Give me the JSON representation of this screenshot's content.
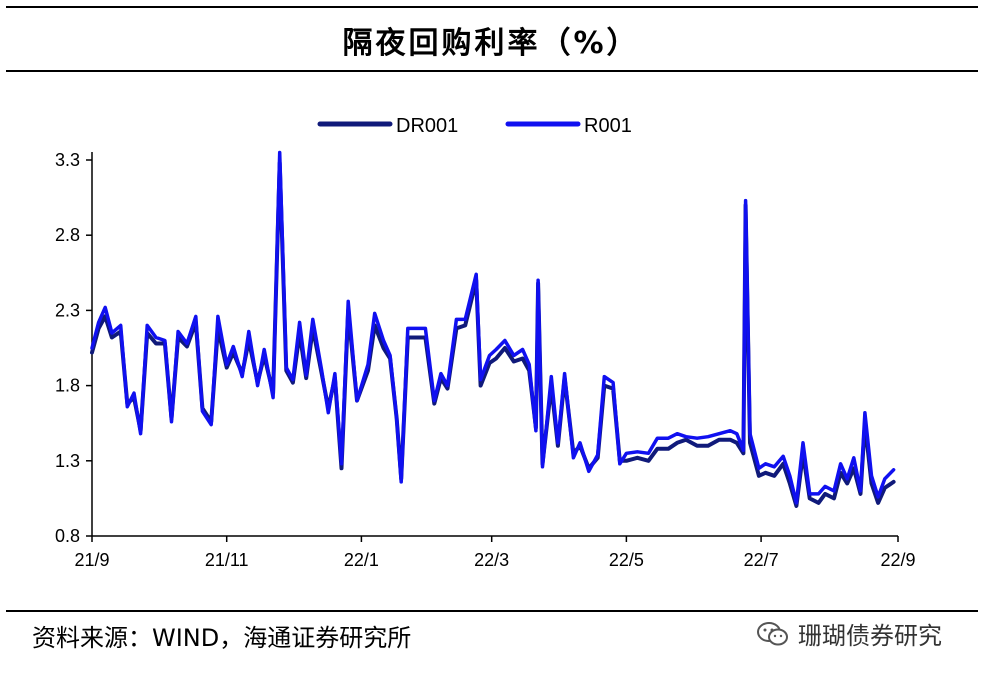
{
  "title": "隔夜回购利率（%）",
  "source": "资料来源：WIND，海通证券研究所",
  "watermark": "珊瑚债券研究",
  "chart_data": {
    "type": "line",
    "title": "隔夜回购利率（%）",
    "xlabel": "",
    "ylabel": "",
    "ylim": [
      0.8,
      3.3
    ],
    "yticks": [
      "0.8",
      "1.3",
      "1.8",
      "2.3",
      "2.8",
      "3.3"
    ],
    "xlim": [
      "2021-09-01",
      "2022-09-01"
    ],
    "xticks": [
      {
        "date": "2021-09-01",
        "label": "21/9"
      },
      {
        "date": "2021-11-01",
        "label": "21/11"
      },
      {
        "date": "2022-01-01",
        "label": "22/1"
      },
      {
        "date": "2022-03-01",
        "label": "22/3"
      },
      {
        "date": "2022-05-01",
        "label": "22/5"
      },
      {
        "date": "2022-07-01",
        "label": "22/7"
      },
      {
        "date": "2022-09-01",
        "label": "22/9"
      }
    ],
    "legend_position": "top-center",
    "grid": false,
    "series": [
      {
        "name": "DR001",
        "color": "#101a7a",
        "points": [
          [
            "2021-09-01",
            2.02
          ],
          [
            "2021-09-04",
            2.18
          ],
          [
            "2021-09-07",
            2.26
          ],
          [
            "2021-09-10",
            2.12
          ],
          [
            "2021-09-14",
            2.16
          ],
          [
            "2021-09-17",
            1.68
          ],
          [
            "2021-09-20",
            1.72
          ],
          [
            "2021-09-23",
            1.5
          ],
          [
            "2021-09-26",
            2.15
          ],
          [
            "2021-09-30",
            2.08
          ],
          [
            "2021-10-04",
            2.08
          ],
          [
            "2021-10-07",
            1.58
          ],
          [
            "2021-10-10",
            2.12
          ],
          [
            "2021-10-14",
            2.06
          ],
          [
            "2021-10-18",
            2.22
          ],
          [
            "2021-10-21",
            1.65
          ],
          [
            "2021-10-25",
            1.56
          ],
          [
            "2021-10-28",
            2.18
          ],
          [
            "2021-11-01",
            1.92
          ],
          [
            "2021-11-04",
            2.02
          ],
          [
            "2021-11-08",
            1.88
          ],
          [
            "2021-11-11",
            2.1
          ],
          [
            "2021-11-15",
            1.82
          ],
          [
            "2021-11-18",
            2.0
          ],
          [
            "2021-11-22",
            1.75
          ],
          [
            "2021-11-25",
            3.28
          ],
          [
            "2021-11-28",
            1.9
          ],
          [
            "2021-12-01",
            1.82
          ],
          [
            "2021-12-04",
            2.15
          ],
          [
            "2021-12-07",
            1.85
          ],
          [
            "2021-12-10",
            2.18
          ],
          [
            "2021-12-14",
            1.88
          ],
          [
            "2021-12-17",
            1.65
          ],
          [
            "2021-12-20",
            1.85
          ],
          [
            "2021-12-23",
            1.25
          ],
          [
            "2021-12-26",
            2.3
          ],
          [
            "2021-12-30",
            1.7
          ],
          [
            "2022-01-04",
            1.9
          ],
          [
            "2022-01-07",
            2.2
          ],
          [
            "2022-01-11",
            2.05
          ],
          [
            "2022-01-14",
            1.98
          ],
          [
            "2022-01-17",
            1.58
          ],
          [
            "2022-01-19",
            1.18
          ],
          [
            "2022-01-22",
            2.12
          ],
          [
            "2022-01-26",
            2.12
          ],
          [
            "2022-01-30",
            2.12
          ],
          [
            "2022-02-03",
            1.68
          ],
          [
            "2022-02-06",
            1.85
          ],
          [
            "2022-02-09",
            1.78
          ],
          [
            "2022-02-13",
            2.18
          ],
          [
            "2022-02-17",
            2.2
          ],
          [
            "2022-02-22",
            2.5
          ],
          [
            "2022-02-24",
            1.8
          ],
          [
            "2022-02-28",
            1.95
          ],
          [
            "2022-03-03",
            1.98
          ],
          [
            "2022-03-07",
            2.05
          ],
          [
            "2022-03-11",
            1.96
          ],
          [
            "2022-03-15",
            1.98
          ],
          [
            "2022-03-18",
            1.9
          ],
          [
            "2022-03-21",
            1.52
          ],
          [
            "2022-03-22",
            2.48
          ],
          [
            "2022-03-24",
            1.28
          ],
          [
            "2022-03-28",
            1.8
          ],
          [
            "2022-03-31",
            1.4
          ],
          [
            "2022-04-03",
            1.85
          ],
          [
            "2022-04-07",
            1.35
          ],
          [
            "2022-04-10",
            1.4
          ],
          [
            "2022-04-14",
            1.25
          ],
          [
            "2022-04-18",
            1.32
          ],
          [
            "2022-04-21",
            1.8
          ],
          [
            "2022-04-25",
            1.78
          ],
          [
            "2022-04-28",
            1.3
          ],
          [
            "2022-05-01",
            1.3
          ],
          [
            "2022-05-06",
            1.32
          ],
          [
            "2022-05-11",
            1.3
          ],
          [
            "2022-05-15",
            1.38
          ],
          [
            "2022-05-20",
            1.38
          ],
          [
            "2022-05-24",
            1.42
          ],
          [
            "2022-05-28",
            1.44
          ],
          [
            "2022-06-02",
            1.4
          ],
          [
            "2022-06-07",
            1.4
          ],
          [
            "2022-06-12",
            1.44
          ],
          [
            "2022-06-17",
            1.44
          ],
          [
            "2022-06-20",
            1.42
          ],
          [
            "2022-06-23",
            1.35
          ],
          [
            "2022-06-24",
            3.0
          ],
          [
            "2022-06-26",
            1.42
          ],
          [
            "2022-06-30",
            1.2
          ],
          [
            "2022-07-03",
            1.22
          ],
          [
            "2022-07-07",
            1.2
          ],
          [
            "2022-07-11",
            1.28
          ],
          [
            "2022-07-14",
            1.15
          ],
          [
            "2022-07-17",
            1.0
          ],
          [
            "2022-07-20",
            1.35
          ],
          [
            "2022-07-23",
            1.05
          ],
          [
            "2022-07-27",
            1.02
          ],
          [
            "2022-07-30",
            1.08
          ],
          [
            "2022-08-03",
            1.05
          ],
          [
            "2022-08-06",
            1.22
          ],
          [
            "2022-08-09",
            1.15
          ],
          [
            "2022-08-12",
            1.25
          ],
          [
            "2022-08-15",
            1.08
          ],
          [
            "2022-08-17",
            1.55
          ],
          [
            "2022-08-20",
            1.15
          ],
          [
            "2022-08-23",
            1.02
          ],
          [
            "2022-08-26",
            1.12
          ],
          [
            "2022-08-30",
            1.16
          ]
        ]
      },
      {
        "name": "R001",
        "color": "#1010f0",
        "points": [
          [
            "2021-09-01",
            2.05
          ],
          [
            "2021-09-04",
            2.22
          ],
          [
            "2021-09-07",
            2.32
          ],
          [
            "2021-09-10",
            2.15
          ],
          [
            "2021-09-14",
            2.2
          ],
          [
            "2021-09-17",
            1.66
          ],
          [
            "2021-09-20",
            1.75
          ],
          [
            "2021-09-23",
            1.48
          ],
          [
            "2021-09-26",
            2.2
          ],
          [
            "2021-09-30",
            2.12
          ],
          [
            "2021-10-04",
            2.1
          ],
          [
            "2021-10-07",
            1.56
          ],
          [
            "2021-10-10",
            2.16
          ],
          [
            "2021-10-14",
            2.08
          ],
          [
            "2021-10-18",
            2.26
          ],
          [
            "2021-10-21",
            1.63
          ],
          [
            "2021-10-25",
            1.54
          ],
          [
            "2021-10-28",
            2.26
          ],
          [
            "2021-11-01",
            1.94
          ],
          [
            "2021-11-04",
            2.06
          ],
          [
            "2021-11-08",
            1.86
          ],
          [
            "2021-11-11",
            2.16
          ],
          [
            "2021-11-15",
            1.8
          ],
          [
            "2021-11-18",
            2.04
          ],
          [
            "2021-11-22",
            1.72
          ],
          [
            "2021-11-25",
            3.35
          ],
          [
            "2021-11-28",
            1.92
          ],
          [
            "2021-12-01",
            1.84
          ],
          [
            "2021-12-04",
            2.22
          ],
          [
            "2021-12-07",
            1.87
          ],
          [
            "2021-12-10",
            2.24
          ],
          [
            "2021-12-14",
            1.9
          ],
          [
            "2021-12-17",
            1.62
          ],
          [
            "2021-12-20",
            1.88
          ],
          [
            "2021-12-23",
            1.28
          ],
          [
            "2021-12-26",
            2.36
          ],
          [
            "2021-12-30",
            1.7
          ],
          [
            "2022-01-04",
            1.94
          ],
          [
            "2022-01-07",
            2.28
          ],
          [
            "2022-01-11",
            2.1
          ],
          [
            "2022-01-14",
            2.0
          ],
          [
            "2022-01-17",
            1.58
          ],
          [
            "2022-01-19",
            1.16
          ],
          [
            "2022-01-22",
            2.18
          ],
          [
            "2022-01-26",
            2.18
          ],
          [
            "2022-01-30",
            2.18
          ],
          [
            "2022-02-03",
            1.7
          ],
          [
            "2022-02-06",
            1.88
          ],
          [
            "2022-02-09",
            1.8
          ],
          [
            "2022-02-13",
            2.24
          ],
          [
            "2022-02-17",
            2.24
          ],
          [
            "2022-02-22",
            2.54
          ],
          [
            "2022-02-24",
            1.84
          ],
          [
            "2022-02-28",
            2.0
          ],
          [
            "2022-03-03",
            2.04
          ],
          [
            "2022-03-07",
            2.1
          ],
          [
            "2022-03-11",
            2.0
          ],
          [
            "2022-03-15",
            2.04
          ],
          [
            "2022-03-18",
            1.94
          ],
          [
            "2022-03-21",
            1.5
          ],
          [
            "2022-03-22",
            2.5
          ],
          [
            "2022-03-24",
            1.26
          ],
          [
            "2022-03-28",
            1.86
          ],
          [
            "2022-03-31",
            1.42
          ],
          [
            "2022-04-03",
            1.88
          ],
          [
            "2022-04-07",
            1.32
          ],
          [
            "2022-04-10",
            1.42
          ],
          [
            "2022-04-14",
            1.23
          ],
          [
            "2022-04-18",
            1.34
          ],
          [
            "2022-04-21",
            1.86
          ],
          [
            "2022-04-25",
            1.82
          ],
          [
            "2022-04-28",
            1.28
          ],
          [
            "2022-05-01",
            1.35
          ],
          [
            "2022-05-06",
            1.36
          ],
          [
            "2022-05-11",
            1.35
          ],
          [
            "2022-05-15",
            1.45
          ],
          [
            "2022-05-20",
            1.45
          ],
          [
            "2022-05-24",
            1.48
          ],
          [
            "2022-05-28",
            1.46
          ],
          [
            "2022-06-02",
            1.45
          ],
          [
            "2022-06-07",
            1.46
          ],
          [
            "2022-06-12",
            1.48
          ],
          [
            "2022-06-17",
            1.5
          ],
          [
            "2022-06-20",
            1.48
          ],
          [
            "2022-06-23",
            1.37
          ],
          [
            "2022-06-24",
            3.03
          ],
          [
            "2022-06-26",
            1.48
          ],
          [
            "2022-06-30",
            1.25
          ],
          [
            "2022-07-03",
            1.28
          ],
          [
            "2022-07-07",
            1.26
          ],
          [
            "2022-07-11",
            1.33
          ],
          [
            "2022-07-14",
            1.2
          ],
          [
            "2022-07-17",
            1.02
          ],
          [
            "2022-07-20",
            1.42
          ],
          [
            "2022-07-23",
            1.08
          ],
          [
            "2022-07-27",
            1.08
          ],
          [
            "2022-07-30",
            1.13
          ],
          [
            "2022-08-03",
            1.1
          ],
          [
            "2022-08-06",
            1.28
          ],
          [
            "2022-08-09",
            1.18
          ],
          [
            "2022-08-12",
            1.32
          ],
          [
            "2022-08-15",
            1.1
          ],
          [
            "2022-08-17",
            1.62
          ],
          [
            "2022-08-20",
            1.2
          ],
          [
            "2022-08-23",
            1.06
          ],
          [
            "2022-08-26",
            1.18
          ],
          [
            "2022-08-30",
            1.24
          ]
        ]
      }
    ]
  }
}
